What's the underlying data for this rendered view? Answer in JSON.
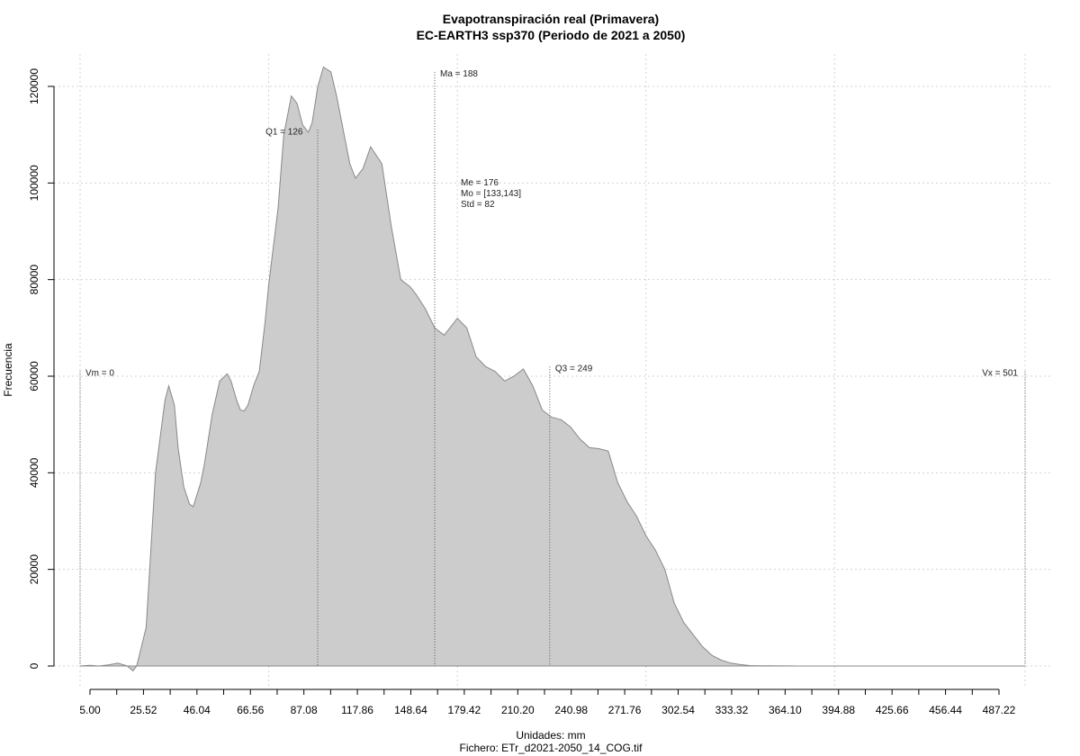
{
  "chart_data": {
    "type": "area",
    "title": "Evapotranspiración real (Primavera)",
    "subtitle": "EC-EARTH3 ssp370 (Periodo de 2021 a 2050)",
    "xlabel": "Unidades: mm",
    "footer": "Fichero: ETr_d2021-2050_14_COG.tif",
    "ylabel": "Frecuencia",
    "x_ticks": [
      "5.00",
      "25.52",
      "46.04",
      "66.56",
      "87.08",
      "117.86",
      "148.64",
      "179.42",
      "210.20",
      "240.98",
      "271.76",
      "302.54",
      "333.32",
      "364.10",
      "394.88",
      "425.66",
      "456.44",
      "487.22"
    ],
    "y_ticks": [
      "0",
      "20000",
      "40000",
      "60000",
      "80000",
      "100000",
      "120000"
    ],
    "xlim": [
      0,
      501
    ],
    "ylim": [
      0,
      124000
    ],
    "grid": true,
    "fill_color": "#cccccc",
    "line_color": "#888888",
    "x": [
      0,
      5,
      10,
      15,
      20,
      25,
      28,
      30,
      35,
      40,
      45,
      47,
      50,
      52,
      55,
      58,
      60,
      64,
      66,
      70,
      74,
      78,
      80,
      83,
      85,
      87,
      89,
      92,
      95,
      98,
      100,
      105,
      108,
      112,
      115,
      118,
      121,
      123,
      126,
      129,
      133,
      136,
      140,
      143,
      146,
      150,
      154,
      160,
      165,
      170,
      175,
      178,
      183,
      188,
      193,
      200,
      205,
      210,
      215,
      220,
      225,
      230,
      235,
      240,
      245,
      250,
      255,
      260,
      265,
      270,
      275,
      280,
      285,
      290,
      295,
      300,
      305,
      310,
      315,
      320,
      325,
      330,
      335,
      340,
      345,
      350,
      355,
      360,
      365,
      370,
      375,
      380,
      385,
      390,
      395,
      400,
      405,
      410,
      415,
      420,
      430,
      440,
      450,
      460,
      470,
      480,
      490,
      501
    ],
    "y": [
      0,
      150,
      0,
      250,
      600,
      0,
      -1000,
      0,
      8000,
      40000,
      55000,
      58000,
      54000,
      45000,
      37000,
      33500,
      33000,
      38000,
      42000,
      52000,
      59000,
      60500,
      59000,
      55000,
      53000,
      52800,
      54000,
      58000,
      61000,
      71000,
      79000,
      95000,
      110000,
      118000,
      116500,
      112000,
      110500,
      112500,
      120000,
      124000,
      123000,
      118000,
      110000,
      104000,
      101000,
      103000,
      107500,
      104000,
      91000,
      80000,
      78500,
      77000,
      74000,
      70000,
      68500,
      72000,
      70000,
      64000,
      62000,
      61000,
      59000,
      60000,
      61500,
      58000,
      53000,
      51500,
      51000,
      49500,
      47000,
      45200,
      45000,
      44500,
      38000,
      34000,
      31000,
      27000,
      24000,
      20000,
      13000,
      9000,
      6500,
      4000,
      2200,
      1200,
      600,
      300,
      100,
      50,
      30,
      20,
      10,
      5,
      2,
      0,
      0,
      0,
      0,
      0,
      0,
      0,
      0,
      0,
      0,
      0,
      0,
      0,
      0,
      0
    ],
    "markers": [
      {
        "label": "Vm = 0",
        "x": 0,
        "y_top": 61000
      },
      {
        "label": "Q1 = 126",
        "x": 126,
        "y_top": 111000
      },
      {
        "label": "Ma = 188",
        "x": 188,
        "y_top": 123000
      },
      {
        "label": "Q3 = 249",
        "x": 249,
        "y_top": 62000
      },
      {
        "label": "Vx = 501",
        "x": 501,
        "y_top": 61000
      }
    ],
    "stats": [
      "Me = 176",
      "Mo = [133,143]",
      "Std = 82"
    ]
  }
}
